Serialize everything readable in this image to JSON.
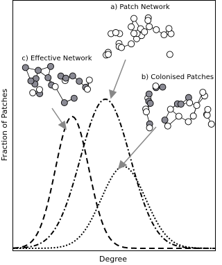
{
  "labels": {
    "patch_network": "a) Patch Network",
    "colonised_patches": "b) Colonised Patches",
    "effective_network": "c) Effective Network"
  },
  "axes": {
    "x_label": "Degree",
    "y_label": "Fraction of Patches"
  }
}
